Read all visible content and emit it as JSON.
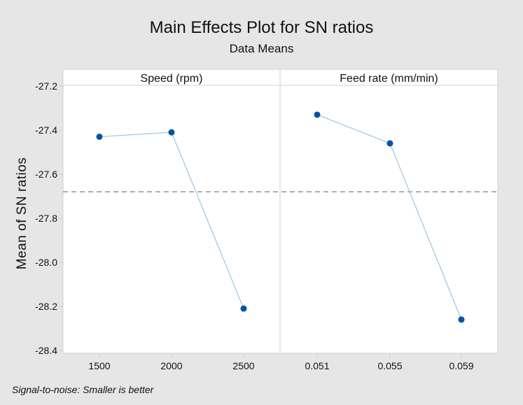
{
  "chart_data": {
    "type": "line",
    "title": "Main Effects Plot for SN ratios",
    "subtitle": "Data Means",
    "ylabel": "Mean of SN ratios",
    "xlabel": "",
    "ylim": [
      -28.4,
      -27.2
    ],
    "yticks": [
      -27.2,
      -27.4,
      -27.6,
      -27.8,
      -28.0,
      -28.2,
      -28.4
    ],
    "ytick_labels": [
      "-27.2",
      "-27.4",
      "-27.6",
      "-27.8",
      "-28.0",
      "-28.2",
      "-28.4"
    ],
    "overall_mean": -27.68,
    "grid": false,
    "footnote": "Signal-to-noise: Smaller is better",
    "panels": [
      {
        "name": "Speed (rpm)",
        "categories": [
          "1500",
          "2000",
          "2500"
        ],
        "values": [
          -27.43,
          -27.41,
          -28.21
        ]
      },
      {
        "name": "Feed rate (mm/min)",
        "categories": [
          "0.051",
          "0.055",
          "0.059"
        ],
        "values": [
          -27.33,
          -27.46,
          -28.26
        ]
      }
    ],
    "colors": {
      "point": "#0054a6",
      "line": "#9fc5df",
      "mean_line": "#8a8a8a"
    }
  }
}
